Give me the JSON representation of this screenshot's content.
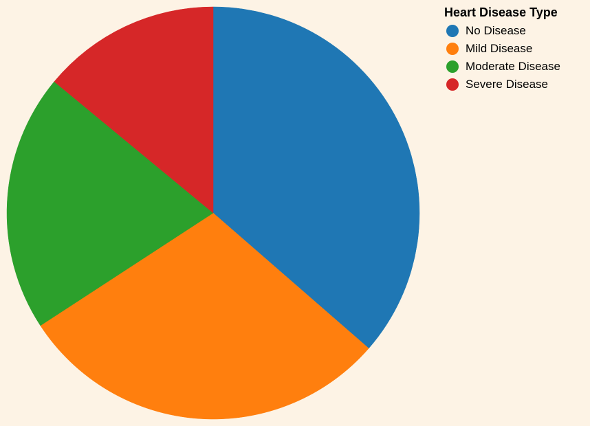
{
  "chart_data": {
    "type": "pie",
    "legend_title": "Heart Disease Type",
    "legend_position": "top-right",
    "categories": [
      "No Disease",
      "Mild Disease",
      "Moderate Disease",
      "Severe Disease"
    ],
    "values": [
      36.4,
      29.4,
      20.2,
      14.0
    ],
    "colors": [
      "#1f77b4",
      "#ff7f0e",
      "#2ca02c",
      "#d62728"
    ],
    "background": "#fdf3e5"
  }
}
